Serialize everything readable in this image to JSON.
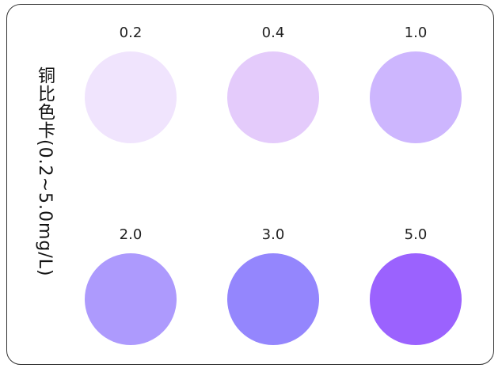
{
  "title": "铜比色卡(0.2~5.0mg/L)",
  "swatches": [
    {
      "label": "0.2",
      "color": "#f0e4fd"
    },
    {
      "label": "0.4",
      "color": "#e4cbfb"
    },
    {
      "label": "1.0",
      "color": "#cdb6fe"
    },
    {
      "label": "2.0",
      "color": "#ad9afd"
    },
    {
      "label": "3.0",
      "color": "#9486fd"
    },
    {
      "label": "5.0",
      "color": "#9b62fe"
    }
  ]
}
